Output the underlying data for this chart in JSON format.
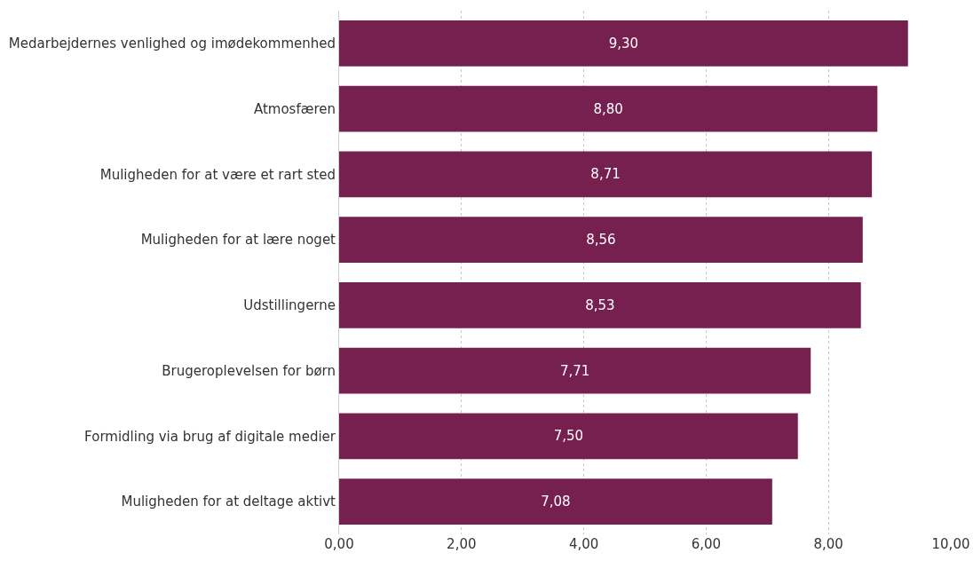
{
  "chart_data": {
    "type": "bar",
    "orientation": "horizontal",
    "categories": [
      "Medarbejdernes venlighed og imødekommenhed",
      "Atmosfæren",
      "Muligheden for at være et rart sted",
      "Muligheden for at lære noget",
      "Udstillingerne",
      "Brugeroplevelsen for børn",
      "Formidling via brug af digitale medier",
      "Muligheden for at deltage aktivt"
    ],
    "values": [
      9.3,
      8.8,
      8.71,
      8.56,
      8.53,
      7.71,
      7.5,
      7.08
    ],
    "value_labels": [
      "9,30",
      "8,80",
      "8,71",
      "8,56",
      "8,53",
      "7,71",
      "7,50",
      "7,08"
    ],
    "color": "#76204f",
    "xlim": [
      0,
      10
    ],
    "xticks": [
      {
        "value": 0,
        "label": "0,00"
      },
      {
        "value": 2,
        "label": "2,00"
      },
      {
        "value": 4,
        "label": "4,00"
      },
      {
        "value": 6,
        "label": "6,00"
      },
      {
        "value": 8,
        "label": "8,00"
      },
      {
        "value": 10,
        "label": "10,00"
      }
    ],
    "grid": "x"
  }
}
